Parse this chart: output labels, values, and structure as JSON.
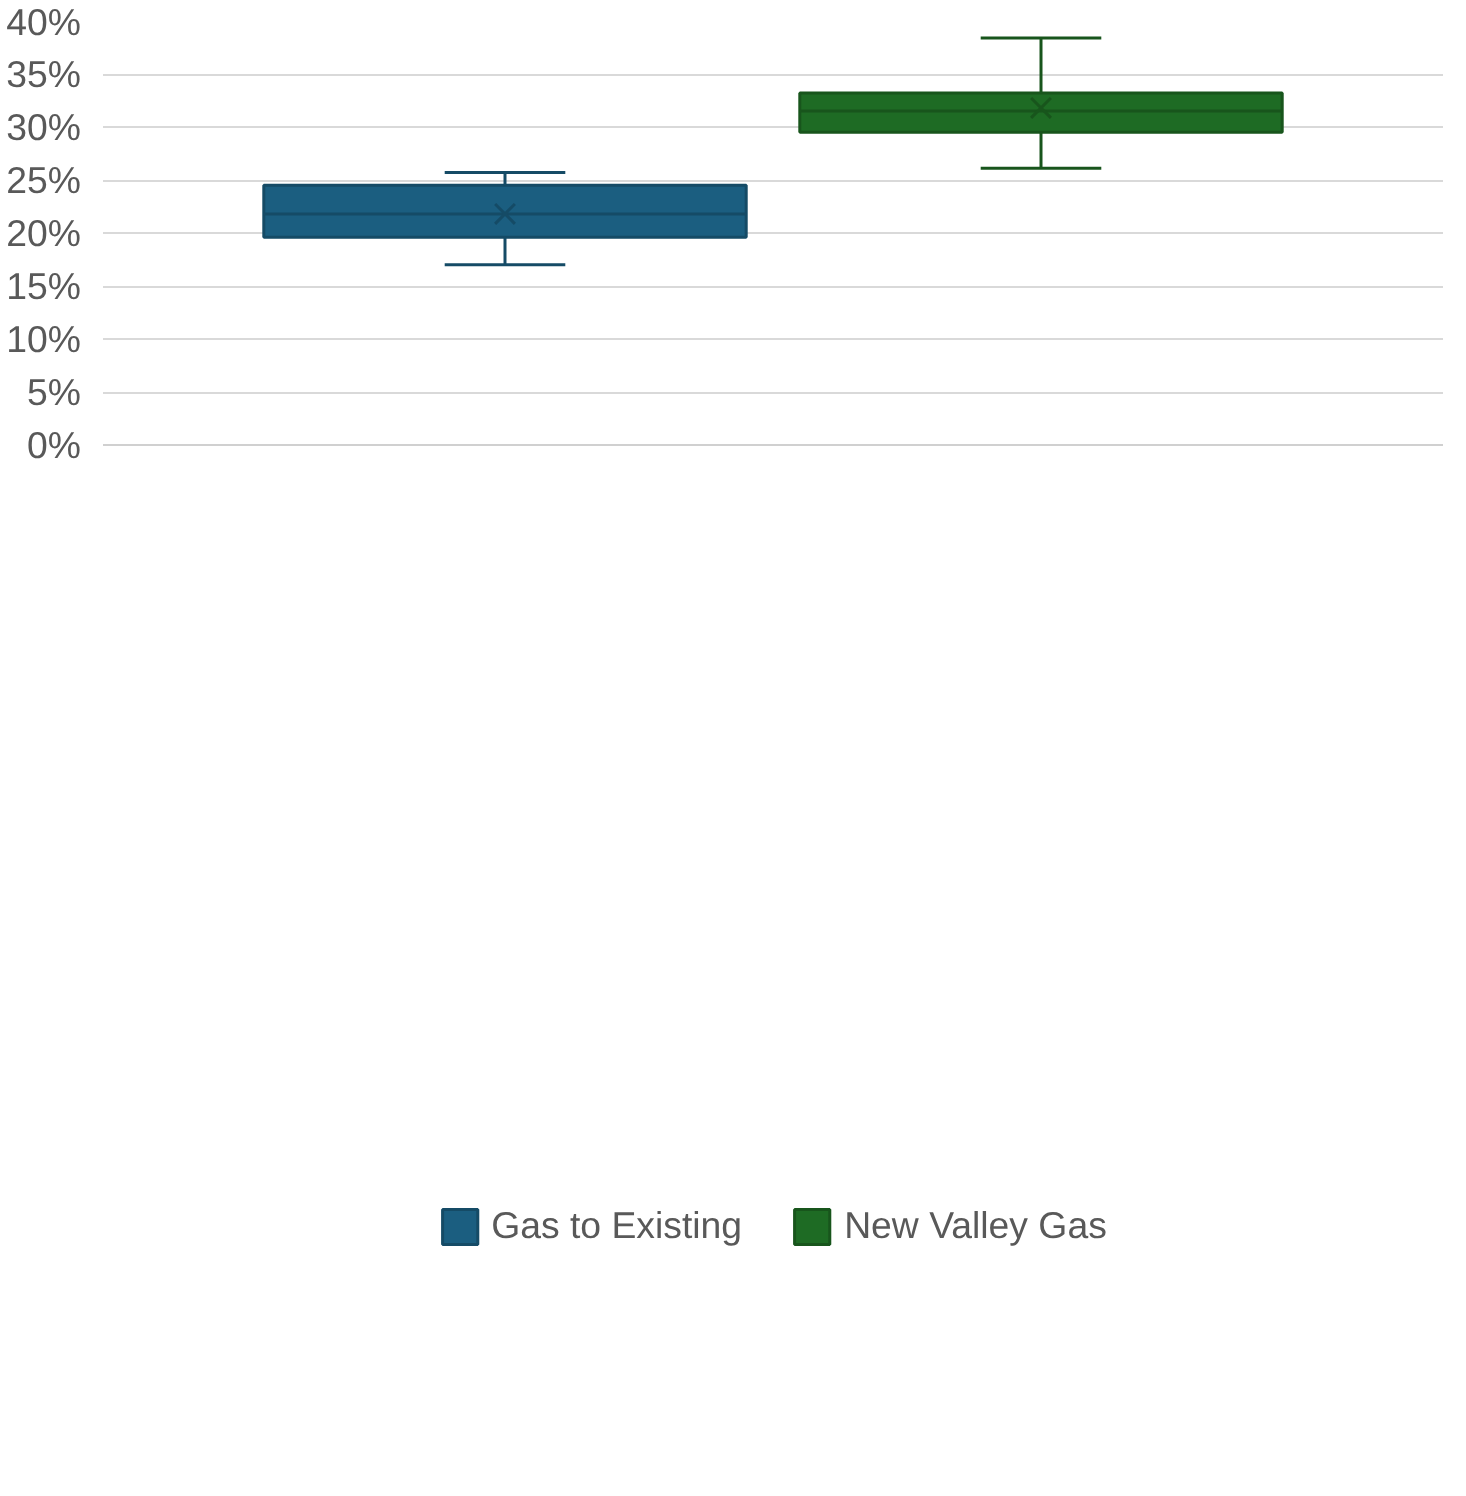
{
  "chart_data": {
    "type": "box",
    "categories": [
      null
    ],
    "series": [
      {
        "name": "Gas to Existing",
        "color": "#1b5e80",
        "boxes": [
          {
            "low": 17.0,
            "q1": 19.6,
            "median": 21.8,
            "q3": 24.5,
            "high": 25.7,
            "mean": 21.8
          }
        ]
      },
      {
        "name": "New Valley Gas",
        "color": "#1e6b24",
        "boxes": [
          {
            "low": 26.1,
            "q1": 29.5,
            "median": 31.5,
            "q3": 33.2,
            "high": 38.4,
            "mean": 31.8
          }
        ]
      }
    ],
    "ylim": [
      0,
      40
    ],
    "yticks": [
      {
        "value": 0,
        "label": "0%"
      },
      {
        "value": 5,
        "label": "5%"
      },
      {
        "value": 10,
        "label": "10%"
      },
      {
        "value": 15,
        "label": "15%"
      },
      {
        "value": 20,
        "label": "20%"
      },
      {
        "value": 25,
        "label": "25%"
      },
      {
        "value": 30,
        "label": "30%"
      },
      {
        "value": 35,
        "label": "35%"
      },
      {
        "value": 40,
        "label": "40%"
      }
    ],
    "grid": "y",
    "legend": "bottom"
  }
}
